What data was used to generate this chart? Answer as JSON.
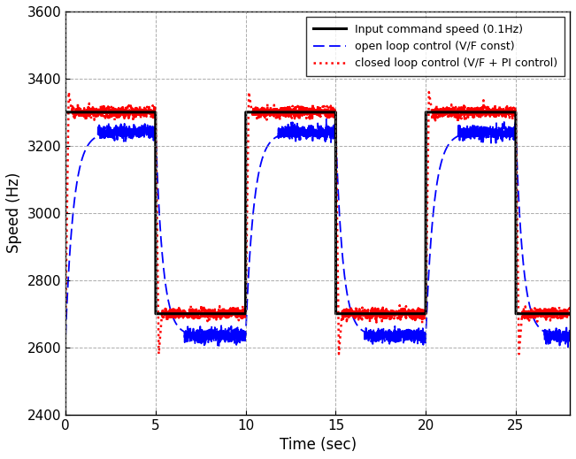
{
  "title": "",
  "xlabel": "Time (sec)",
  "ylabel": "Speed (Hz)",
  "xlim": [
    0,
    28
  ],
  "ylim": [
    2400,
    3600
  ],
  "yticks": [
    2400,
    2600,
    2800,
    3000,
    3200,
    3400,
    3600
  ],
  "xticks": [
    0,
    5,
    10,
    15,
    20,
    25
  ],
  "high_speed": 3300,
  "low_speed": 2700,
  "period": 10,
  "duty": 0.5,
  "total_time": 28,
  "open_loop_high": 3240,
  "open_loop_low": 2635,
  "open_loop_rise_time": 1.8,
  "open_loop_fall_time": 1.6,
  "closed_loop_overshoot_high": 3360,
  "closed_loop_undershoot_low": 2580,
  "closed_loop_rise_time": 0.35,
  "closed_loop_fall_time": 0.35,
  "bg_color": "#ffffff",
  "grid_color": "#888888",
  "square_color": "#000000",
  "open_loop_color": "#0000ff",
  "closed_loop_color": "#ff0000",
  "legend_labels": [
    "Input command speed (0.1Hz)",
    "open loop control (V/F const)",
    "closed loop control (V/F + PI control)"
  ],
  "figsize": [
    6.51,
    5.19
  ],
  "dpi": 100
}
